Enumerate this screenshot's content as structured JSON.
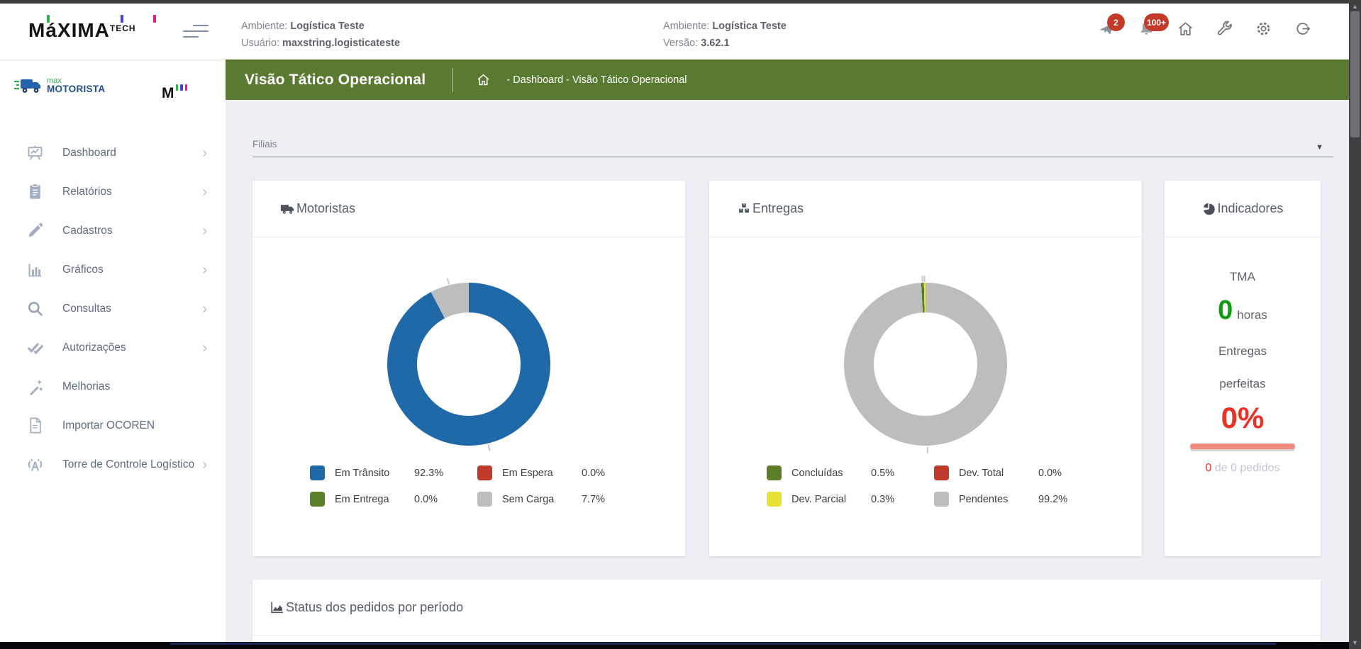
{
  "window": {
    "scroll_up": "▲",
    "scroll_down": "▼"
  },
  "header": {
    "brand": "MáXIMA",
    "brand_suffix": "TECH",
    "accent_green": "#2eb34b",
    "accent_blue": "#4146c9",
    "accent_pink": "#f0187e",
    "info_left": {
      "l1_label": "Ambiente:",
      "l1_value": "Logística Teste",
      "l2_label": "Usuário:",
      "l2_value": "maxstring.logisticateste"
    },
    "info_right": {
      "l1_label": "Ambiente:",
      "l1_value": "Logística Teste",
      "l2_label": "Versão:",
      "l2_value": "3.62.1"
    },
    "badge_announce": "2",
    "badge_bell": "100+"
  },
  "sidebar": {
    "product": {
      "line1": "max",
      "line2": "MOTORISTA",
      "mark": "M"
    },
    "items": [
      {
        "label": "Dashboard"
      },
      {
        "label": "Relatórios"
      },
      {
        "label": "Cadastros"
      },
      {
        "label": "Gráficos"
      },
      {
        "label": "Consultas"
      },
      {
        "label": "Autorizações"
      },
      {
        "label": "Melhorias"
      },
      {
        "label": "Importar OCOREN"
      },
      {
        "label": "Torre de Controle Logístico"
      }
    ],
    "chevron": "›"
  },
  "titlebar": {
    "title": "Visão Tático Operacional",
    "breadcrumb": "- Dashboard - Visão Tático Operacional"
  },
  "filters": {
    "label": "Filiais",
    "caret": "▼"
  },
  "chart_data": [
    {
      "type": "pie",
      "donut": true,
      "title": "Motoristas",
      "labels": [
        "Em Trânsito",
        "Em Espera",
        "Em Entrega",
        "Sem Carga"
      ],
      "values": [
        92.3,
        0.0,
        0.0,
        7.7
      ],
      "value_labels": [
        "92.3%",
        "0.0%",
        "0.0%",
        "7.7%"
      ],
      "colors": [
        "#2069a9",
        "#c0392b",
        "#5d7e28",
        "#bcbdbf"
      ],
      "rotate": 0,
      "legend_position": "bottom"
    },
    {
      "type": "pie",
      "donut": true,
      "title": "Entregas",
      "labels": [
        "Concluídas",
        "Dev. Total",
        "Dev. Parcial",
        "Pendentes"
      ],
      "values": [
        0.5,
        0.0,
        0.3,
        99.2
      ],
      "value_labels": [
        "0.5%",
        "0.0%",
        "0.3%",
        "99.2%"
      ],
      "colors": [
        "#5d7e28",
        "#c0392b",
        "#e6e134",
        "#bcbdbf"
      ],
      "rotate": -3,
      "legend_position": "bottom"
    }
  ],
  "indicators": {
    "title": "Indicadores",
    "tma_label": "TMA",
    "tma_value": "0",
    "tma_unit": "horas",
    "metric_line1": "Entregas",
    "metric_line2": "perfeitas",
    "metric_value": "0%",
    "metric_value_color": "#ee3124",
    "bar_color": "#f08a7e",
    "footnote_value": "0",
    "footnote_text": "de 0 pedidos"
  },
  "status_card": {
    "title": "Status dos pedidos por período"
  }
}
